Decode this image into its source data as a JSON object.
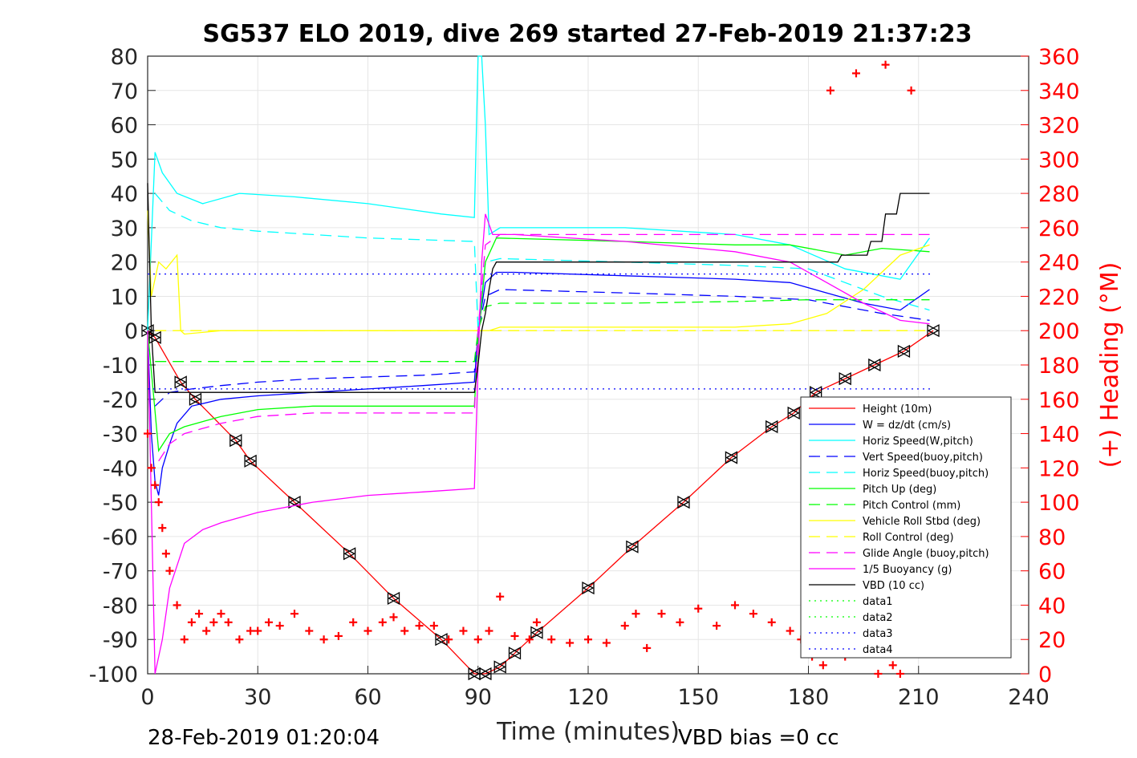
{
  "chart_data": {
    "type": "line",
    "title": "SG537 ELO 2019, dive 269 started 27-Feb-2019 21:37:23",
    "xlabel": "Time (minutes)",
    "ylabel": "",
    "ylabel_right": "(+) Heading (°M)",
    "xlim": [
      0,
      240
    ],
    "ylim": [
      -100,
      80
    ],
    "ylim_right": [
      0,
      360
    ],
    "xticks": [
      0,
      30,
      60,
      90,
      120,
      150,
      180,
      210,
      240
    ],
    "yticks": [
      -100,
      -90,
      -80,
      -70,
      -60,
      -50,
      -40,
      -30,
      -20,
      -10,
      0,
      10,
      20,
      30,
      40,
      50,
      60,
      70,
      80
    ],
    "yticks_right": [
      0,
      20,
      40,
      60,
      80,
      100,
      120,
      140,
      160,
      180,
      200,
      220,
      240,
      260,
      280,
      300,
      320,
      340,
      360
    ],
    "grid": true,
    "legend_position": "bottom-right",
    "footer_left": "28-Feb-2019 01:20:04",
    "footer_right": "VBD bias =0 cc",
    "series": [
      {
        "name": "Height (10m)",
        "color": "#ff0000",
        "style": "solid",
        "marker": "triangle",
        "x": [
          0,
          2,
          9,
          13,
          24,
          28,
          40,
          55,
          67,
          80,
          89,
          92,
          96,
          100,
          106,
          120,
          132,
          146,
          159,
          170,
          176,
          182,
          190,
          198,
          206,
          214
        ],
        "y": [
          0,
          -2,
          -15,
          -20,
          -32,
          -38,
          -50,
          -65,
          -78,
          -90,
          -100,
          -100,
          -98,
          -94,
          -88,
          -75,
          -63,
          -50,
          -37,
          -28,
          -24,
          -18,
          -14,
          -10,
          -6,
          0
        ]
      },
      {
        "name": "W = dz/dt (cm/s)",
        "color": "#0000ff",
        "style": "solid",
        "x": [
          0,
          1,
          2,
          3,
          4,
          6,
          8,
          12,
          20,
          30,
          45,
          60,
          75,
          89,
          90,
          92,
          95,
          100,
          130,
          160,
          175,
          185,
          195,
          205,
          213
        ],
        "y": [
          0,
          -30,
          -44,
          -48,
          -40,
          -33,
          -27,
          -22,
          -20,
          -19,
          -18,
          -17,
          -16,
          -15,
          0,
          14,
          17,
          17,
          16,
          15,
          14,
          11,
          8,
          6,
          12
        ]
      },
      {
        "name": "Horiz Speed(W,pitch)",
        "color": "#00ffff",
        "style": "solid",
        "x": [
          0,
          2,
          4,
          8,
          15,
          25,
          40,
          60,
          80,
          89,
          90,
          91,
          92,
          93,
          96,
          130,
          160,
          175,
          190,
          205,
          213
        ],
        "y": [
          0,
          52,
          46,
          40,
          37,
          40,
          39,
          37,
          34,
          33,
          80,
          80,
          60,
          28,
          30,
          30,
          28,
          25,
          18,
          15,
          27
        ]
      },
      {
        "name": "Vert Speed(buoy,pitch)",
        "color": "#0000ff",
        "style": "dashed",
        "x": [
          2,
          6,
          12,
          20,
          30,
          45,
          60,
          75,
          89,
          90,
          92,
          96,
          130,
          160,
          180,
          200,
          213
        ],
        "y": [
          -22,
          -18,
          -17,
          -16,
          -15,
          -14,
          -13.5,
          -13,
          -12,
          0,
          10,
          12,
          11,
          10,
          9,
          5,
          3
        ]
      },
      {
        "name": "Horiz Speed(buoy,pitch)",
        "color": "#00ffff",
        "style": "dashed",
        "x": [
          2,
          6,
          12,
          20,
          30,
          45,
          60,
          75,
          89,
          90,
          92,
          96,
          130,
          160,
          180,
          200,
          213
        ],
        "y": [
          40,
          35,
          32,
          30,
          29,
          28,
          27,
          26.5,
          26,
          0,
          20,
          21,
          20,
          19,
          18,
          10,
          6
        ]
      },
      {
        "name": "Pitch Up (deg)",
        "color": "#00ff00",
        "style": "solid",
        "x": [
          0,
          3,
          6,
          10,
          20,
          30,
          45,
          60,
          75,
          89,
          90,
          92,
          95,
          130,
          160,
          175,
          190,
          200,
          213
        ],
        "y": [
          0,
          -35,
          -30,
          -28,
          -25,
          -23,
          -22,
          -22,
          -22,
          -22,
          -3,
          20,
          27,
          26,
          25,
          25,
          22,
          24,
          23
        ]
      },
      {
        "name": "Pitch Control (mm)",
        "color": "#00ff00",
        "style": "dashed",
        "x": [
          2,
          20,
          40,
          60,
          89,
          90,
          92,
          96,
          130,
          160,
          180,
          200,
          213
        ],
        "y": [
          -9,
          -9,
          -9,
          -9,
          -9,
          0,
          7,
          8,
          8,
          8.5,
          9,
          9,
          9
        ]
      },
      {
        "name": "Vehicle Roll Stbd (deg)",
        "color": "#ffff00",
        "style": "solid",
        "x": [
          0,
          1,
          3,
          5,
          8,
          9,
          10,
          20,
          30,
          45,
          60,
          75,
          89,
          91,
          93,
          96,
          105,
          130,
          160,
          175,
          185,
          195,
          205,
          213
        ],
        "y": [
          35,
          10,
          20,
          18,
          22,
          0,
          -1,
          0,
          0,
          0,
          0,
          0,
          0,
          0,
          0,
          1,
          1,
          1,
          1,
          2,
          5,
          12,
          22,
          25
        ]
      },
      {
        "name": "Roll Control (deg)",
        "color": "#ffff00",
        "style": "dashed",
        "x": [
          2,
          20,
          40,
          60,
          89,
          91,
          96,
          130,
          160,
          180,
          190,
          200,
          213
        ],
        "y": [
          0,
          0,
          0,
          0,
          0,
          0,
          0,
          0,
          0,
          0,
          0,
          0,
          0
        ]
      },
      {
        "name": "Glide Angle (buoy,pitch)",
        "color": "#ff00ff",
        "style": "dashed",
        "x": [
          3,
          6,
          10,
          20,
          30,
          45,
          60,
          75,
          89,
          90,
          92,
          96,
          130,
          160,
          180,
          200,
          213
        ],
        "y": [
          -38,
          -33,
          -30,
          -27,
          -25,
          -24,
          -24,
          -24,
          -24,
          0,
          25,
          28,
          28,
          28,
          28,
          28,
          28
        ]
      },
      {
        "name": "1/5 Buoyancy (g)",
        "color": "#ff00ff",
        "style": "solid",
        "x": [
          0,
          2,
          4,
          6,
          10,
          15,
          20,
          30,
          45,
          60,
          75,
          89,
          90,
          91,
          92,
          94,
          100,
          130,
          160,
          175,
          185,
          195,
          205,
          213
        ],
        "y": [
          0,
          -100,
          -90,
          -75,
          -62,
          -58,
          -56,
          -53,
          -50,
          -48,
          -47,
          -46,
          -10,
          20,
          34,
          28,
          28,
          26,
          23,
          20,
          14,
          8,
          3,
          2
        ]
      },
      {
        "name": "VBD (10 cc)",
        "color": "#000000",
        "style": "solid",
        "x": [
          0,
          1,
          2,
          3,
          89,
          90,
          91,
          92,
          93,
          94,
          95,
          175,
          176,
          188,
          189,
          196,
          197,
          200,
          201,
          204,
          205,
          213
        ],
        "y": [
          43,
          0,
          -18,
          -18,
          -18,
          -10,
          0,
          5,
          12,
          18,
          20,
          20,
          20,
          20,
          22,
          22,
          26,
          26,
          34,
          34,
          40,
          40
        ]
      },
      {
        "name": "data1",
        "color": "#00ff00",
        "style": "dotted",
        "x": [],
        "y": []
      },
      {
        "name": "data2",
        "color": "#00ff00",
        "style": "dotted",
        "x": [],
        "y": []
      },
      {
        "name": "data3",
        "color": "#0000ff",
        "style": "dotted",
        "x": [
          0,
          214
        ],
        "y": [
          16.5,
          16.5
        ]
      },
      {
        "name": "data4",
        "color": "#0000ff",
        "style": "dotted",
        "x": [
          0,
          214
        ],
        "y": [
          -17,
          -17
        ]
      }
    ],
    "heading_series": {
      "name": "(+) Heading (°M)",
      "color": "#ff0000",
      "marker": "plus",
      "axis": "right",
      "x": [
        0,
        1,
        2,
        3,
        4,
        5,
        6,
        8,
        10,
        12,
        14,
        16,
        18,
        20,
        22,
        25,
        28,
        30,
        33,
        36,
        40,
        44,
        48,
        52,
        56,
        60,
        64,
        67,
        70,
        74,
        78,
        82,
        86,
        90,
        93,
        96,
        100,
        104,
        106,
        110,
        115,
        120,
        125,
        130,
        133,
        136,
        140,
        145,
        150,
        155,
        160,
        165,
        170,
        175,
        178,
        181,
        184,
        186,
        190,
        193,
        196,
        199,
        201,
        203,
        205,
        208,
        210
      ],
      "y": [
        140,
        120,
        110,
        100,
        85,
        70,
        60,
        40,
        20,
        30,
        35,
        25,
        30,
        35,
        30,
        20,
        25,
        25,
        30,
        28,
        35,
        25,
        20,
        22,
        30,
        25,
        30,
        33,
        25,
        28,
        28,
        20,
        25,
        20,
        25,
        45,
        22,
        20,
        30,
        20,
        18,
        20,
        18,
        28,
        35,
        15,
        35,
        30,
        38,
        28,
        40,
        35,
        30,
        25,
        20,
        10,
        5,
        340,
        10,
        350,
        20,
        0,
        355,
        5,
        0,
        340,
        15
      ]
    }
  }
}
